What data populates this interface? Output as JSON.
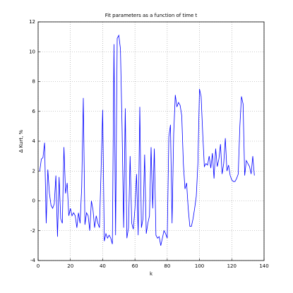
{
  "chart_data": {
    "type": "line",
    "title": "Fit parameters as a function of time t",
    "xlabel": "k",
    "ylabel": "Δ Kurt, %",
    "x": [
      1,
      2,
      3,
      4,
      5,
      6,
      7,
      8,
      9,
      10,
      11,
      12,
      13,
      14,
      15,
      16,
      17,
      18,
      19,
      20,
      21,
      22,
      23,
      24,
      25,
      26,
      27,
      28,
      29,
      30,
      31,
      32,
      33,
      34,
      35,
      36,
      37,
      38,
      39,
      40,
      41,
      42,
      43,
      44,
      45,
      46,
      47,
      48,
      49,
      50,
      51,
      52,
      53,
      54,
      55,
      56,
      57,
      58,
      59,
      60,
      61,
      62,
      63,
      64,
      65,
      66,
      67,
      68,
      69,
      70,
      71,
      72,
      73,
      74,
      75,
      76,
      77,
      78,
      79,
      80,
      81,
      82,
      83,
      84,
      85,
      86,
      87,
      88,
      89,
      90,
      91,
      92,
      93,
      94,
      95,
      96,
      97,
      98,
      99,
      100,
      101,
      102,
      103,
      104,
      105,
      106,
      107,
      108,
      109,
      110,
      111,
      112,
      113,
      114,
      115,
      116,
      117,
      118,
      119,
      120,
      121,
      122,
      123,
      124,
      125,
      126,
      127,
      128,
      129,
      130,
      131,
      132,
      133,
      134
    ],
    "series": [
      {
        "color": "#0000ff",
        "values": [
          2.0,
          2.8,
          2.9,
          3.9,
          -1.5,
          2.1,
          0.5,
          -0.3,
          -0.5,
          -0.2,
          1.7,
          -2.4,
          1.6,
          -1.2,
          -1.5,
          3.6,
          0.5,
          1.2,
          -1.0,
          -0.5,
          -1.0,
          -0.8,
          -1.0,
          -1.8,
          -0.8,
          -1.5,
          0.9,
          6.9,
          -1.6,
          -0.8,
          -1.0,
          -2.0,
          0.0,
          -0.6,
          -1.8,
          -1.0,
          -1.5,
          -1.8,
          2.0,
          6.1,
          -2.7,
          -2.2,
          -2.5,
          -2.3,
          -2.5,
          -2.9,
          10.5,
          -2.3,
          10.9,
          11.1,
          10.2,
          5.0,
          -1.8,
          6.2,
          -2.5,
          -1.8,
          3.0,
          -1.5,
          -1.9,
          -0.5,
          1.8,
          -2.3,
          6.3,
          -1.8,
          -1.2,
          3.1,
          -2.2,
          -1.5,
          -1.0,
          3.6,
          -0.5,
          3.5,
          -2.3,
          -2.5,
          -2.4,
          -3.0,
          -2.5,
          -2.0,
          -2.2,
          -2.5,
          4.3,
          5.1,
          -1.5,
          4.5,
          7.1,
          6.3,
          6.6,
          6.4,
          5.7,
          2.5,
          0.8,
          1.2,
          -0.5,
          -1.7,
          -1.7,
          -1.2,
          -0.5,
          0.3,
          2.5,
          7.5,
          7.0,
          4.5,
          2.3,
          2.5,
          2.4,
          3.0,
          2.2,
          3.2,
          1.5,
          3.5,
          2.3,
          2.8,
          3.8,
          1.8,
          2.5,
          4.2,
          2.0,
          2.4,
          1.7,
          1.4,
          1.3,
          1.3,
          1.5,
          1.8,
          5.0,
          7.0,
          6.5,
          1.7,
          2.7,
          2.5,
          2.3,
          1.8,
          3.0,
          1.7
        ]
      }
    ],
    "xlim": [
      0,
      140
    ],
    "xticks": [
      0,
      20,
      40,
      60,
      80,
      100,
      120,
      140
    ],
    "ylim": [
      -4,
      12
    ],
    "yticks": [
      -4,
      -2,
      0,
      2,
      4,
      6,
      8,
      10,
      12
    ],
    "grid": true
  }
}
